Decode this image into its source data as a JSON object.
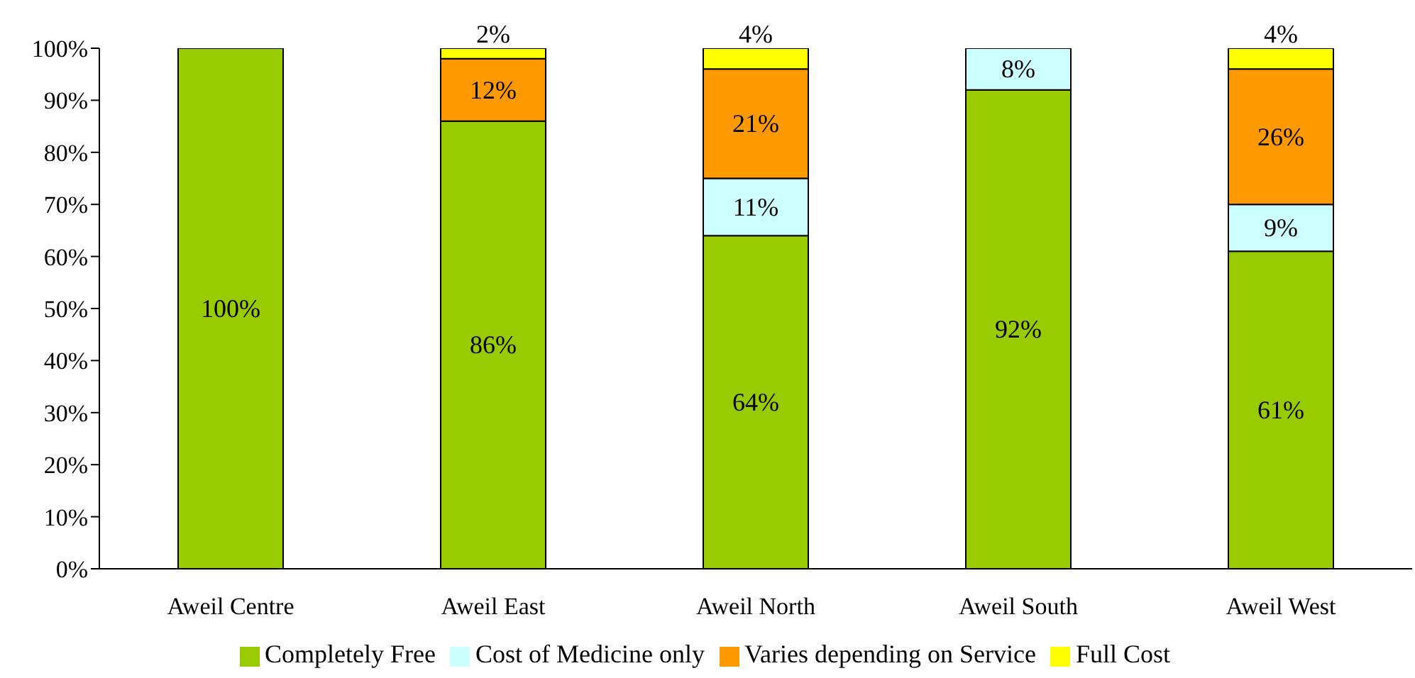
{
  "chart_data": {
    "type": "bar",
    "stacked": true,
    "categories": [
      "Aweil Centre",
      "Aweil East",
      "Aweil North",
      "Aweil South",
      "Aweil West"
    ],
    "series": [
      {
        "name": "Completely Free",
        "color": "#99cc00",
        "values": [
          100,
          86,
          64,
          92,
          61
        ],
        "value_labels": [
          "100%",
          "86%",
          "64%",
          "92%",
          "61%"
        ]
      },
      {
        "name": "Cost of Medicine only",
        "color": "#ccffff",
        "values": [
          0,
          0,
          11,
          8,
          9
        ],
        "value_labels": [
          null,
          null,
          "11%",
          "8%",
          "9%"
        ]
      },
      {
        "name": "Varies depending on Service",
        "color": "#ff9900",
        "values": [
          0,
          12,
          21,
          0,
          26
        ],
        "value_labels": [
          null,
          "12%",
          "21%",
          null,
          "26%"
        ]
      },
      {
        "name": "Full Cost",
        "color": "#ffff00",
        "values": [
          0,
          2,
          4,
          0,
          4
        ],
        "value_labels": [
          null,
          "2%",
          "4%",
          null,
          "4%"
        ]
      }
    ],
    "ylim": [
      0,
      100
    ],
    "yticks": [
      {
        "value": 0,
        "label": "0%"
      },
      {
        "value": 10,
        "label": "10%"
      },
      {
        "value": 20,
        "label": "20%"
      },
      {
        "value": 30,
        "label": "30%"
      },
      {
        "value": 40,
        "label": "40%"
      },
      {
        "value": 50,
        "label": "50%"
      },
      {
        "value": 60,
        "label": "60%"
      },
      {
        "value": 70,
        "label": "70%"
      },
      {
        "value": 80,
        "label": "80%"
      },
      {
        "value": 90,
        "label": "90%"
      },
      {
        "value": 100,
        "label": "100%"
      }
    ],
    "grid": false,
    "legend": "bottom"
  }
}
